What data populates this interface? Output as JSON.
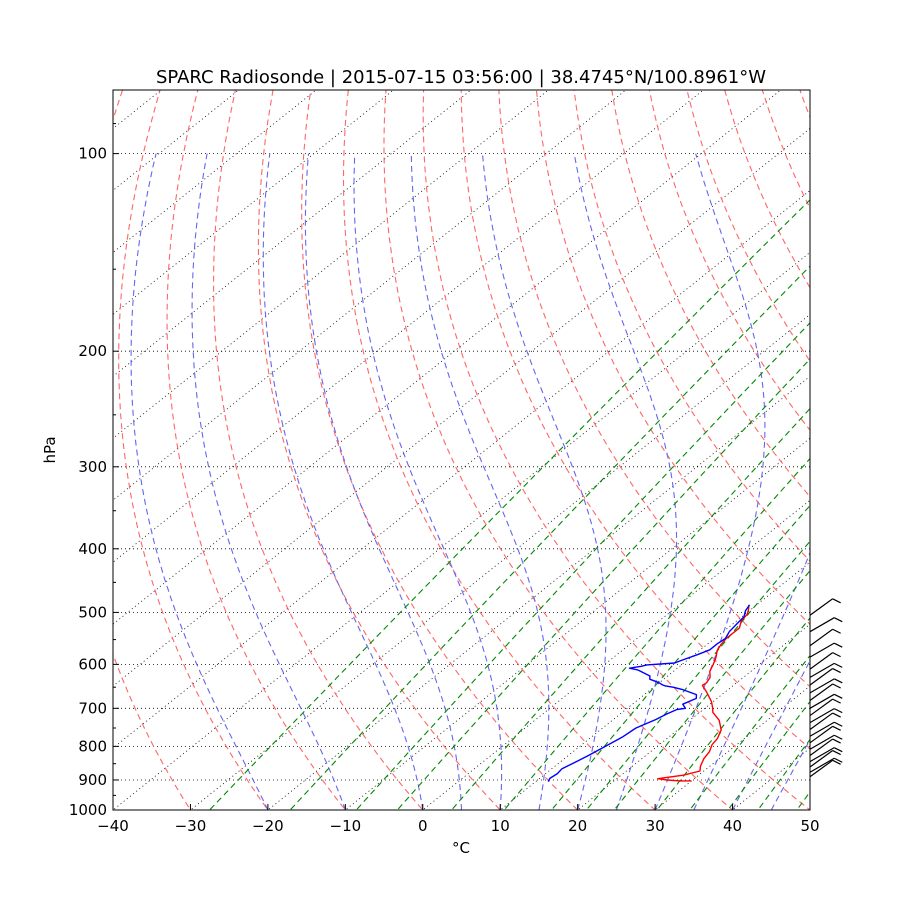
{
  "chart_data": {
    "type": "skew-t",
    "title": "SPARC Radiosonde | 2015-07-15 03:56:00 | 38.4745°N/100.8961°W",
    "xlabel": "°C",
    "ylabel": "hPa",
    "xlim": [
      -40,
      50
    ],
    "ylim_hpa": [
      1000,
      80
    ],
    "x_ticks": [
      "−40",
      "−30",
      "−20",
      "−10",
      "0",
      "10",
      "20",
      "30",
      "40",
      "50"
    ],
    "x_tick_values": [
      -40,
      -30,
      -20,
      -10,
      0,
      10,
      20,
      30,
      40,
      50
    ],
    "y_ticks": [
      "100",
      "200",
      "300",
      "400",
      "500",
      "600",
      "700",
      "800",
      "900",
      "1000"
    ],
    "y_tick_values": [
      100,
      200,
      300,
      400,
      500,
      600,
      700,
      800,
      900,
      1000
    ],
    "grid": true,
    "colors": {
      "temperature": "#ff0000",
      "dewpoint": "#0000ff",
      "dry_adiabat": "#ff6666",
      "moist_adiabat": "#6666ee",
      "mixing_ratio": "#008800",
      "isotherm": "#000000",
      "isobar": "#000000",
      "wind_barb": "#000000"
    },
    "series": [
      {
        "name": "Temperature",
        "color": "#ff0000",
        "points": [
          [
            30.0,
            903
          ],
          [
            28.5,
            903
          ],
          [
            26.7,
            900
          ],
          [
            25.3,
            896
          ],
          [
            28.0,
            885
          ],
          [
            29.5,
            872
          ],
          [
            28.8,
            858
          ],
          [
            28.0,
            835
          ],
          [
            27.6,
            815
          ],
          [
            26.8,
            795
          ],
          [
            26.5,
            778
          ],
          [
            25.6,
            755
          ],
          [
            23.8,
            730
          ],
          [
            21.7,
            710
          ],
          [
            20.8,
            697
          ],
          [
            19.8,
            684
          ],
          [
            17.7,
            662
          ],
          [
            16.0,
            646
          ],
          [
            16.1,
            640
          ],
          [
            15.7,
            628
          ],
          [
            14.7,
            615
          ],
          [
            14.0,
            600
          ],
          [
            13.5,
            590
          ],
          [
            13.0,
            582
          ],
          [
            12.3,
            572
          ],
          [
            11.8,
            560
          ],
          [
            11.5,
            548
          ],
          [
            11.5,
            538
          ],
          [
            11.5,
            528
          ],
          [
            10.6,
            515
          ],
          [
            10.3,
            503
          ],
          [
            9.7,
            495
          ],
          [
            9.0,
            487
          ]
        ]
      },
      {
        "name": "Dewpoint",
        "color": "#0000ff",
        "points": [
          [
            11.6,
            905
          ],
          [
            11.3,
            895
          ],
          [
            11.5,
            880
          ],
          [
            11.3,
            865
          ],
          [
            12.0,
            845
          ],
          [
            12.6,
            825
          ],
          [
            13.3,
            800
          ],
          [
            14.0,
            775
          ],
          [
            14.3,
            750
          ],
          [
            15.5,
            728
          ],
          [
            16.0,
            714
          ],
          [
            16.6,
            703
          ],
          [
            17.5,
            700
          ],
          [
            16.5,
            690
          ],
          [
            17.3,
            676
          ],
          [
            16.7,
            667
          ],
          [
            14.0,
            655
          ],
          [
            12.5,
            650
          ],
          [
            11.3,
            647
          ],
          [
            10.8,
            645
          ],
          [
            10.0,
            640
          ],
          [
            8.2,
            632
          ],
          [
            7.7,
            625
          ],
          [
            5.2,
            612
          ],
          [
            3.8,
            608
          ],
          [
            5.0,
            604
          ],
          [
            5.5,
            601
          ],
          [
            8.8,
            597
          ],
          [
            9.2,
            592
          ],
          [
            10.4,
            580
          ],
          [
            11.2,
            570
          ],
          [
            11.2,
            558
          ],
          [
            11.4,
            548
          ],
          [
            10.8,
            535
          ],
          [
            10.5,
            520
          ],
          [
            10.3,
            508
          ],
          [
            9.5,
            497
          ],
          [
            9.1,
            487
          ]
        ]
      }
    ],
    "wind_levels_hpa": [
      505,
      535,
      562,
      585,
      610,
      628,
      645,
      663,
      681,
      700,
      718,
      736,
      754,
      772,
      790,
      808,
      826,
      844,
      860,
      876,
      890
    ]
  }
}
